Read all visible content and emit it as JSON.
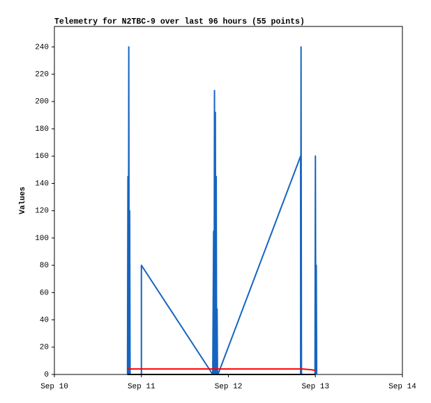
{
  "chart_data": {
    "type": "line",
    "title": "Telemetry for N2TBC-9 over last 96 hours (55 points)",
    "y_label": "Values",
    "xlim": [
      10,
      14
    ],
    "xticks": [
      {
        "value": 10,
        "label": "Sep 10"
      },
      {
        "value": 11,
        "label": "Sep 11"
      },
      {
        "value": 12,
        "label": "Sep 12"
      },
      {
        "value": 13,
        "label": "Sep 13"
      },
      {
        "value": 14,
        "label": "Sep 14"
      }
    ],
    "ylim": [
      0,
      255
    ],
    "yticks": [
      0,
      20,
      40,
      60,
      80,
      100,
      120,
      140,
      160,
      180,
      200,
      220,
      240
    ],
    "series": [
      {
        "color": "#1565c0",
        "x": [
          10.84,
          10.845,
          10.85,
          10.855,
          10.86,
          10.865,
          10.87,
          11.0,
          11.0,
          11.82,
          11.83,
          11.835,
          11.84,
          11.845,
          11.85,
          11.855,
          11.86,
          11.865,
          11.87,
          11.875,
          11.88,
          12.83,
          12.83,
          12.835,
          12.84,
          12.995,
          13.0,
          13.005,
          13.01,
          13.015
        ],
        "values": [
          0,
          145,
          0,
          240,
          0,
          120,
          0,
          0,
          80,
          0,
          105,
          0,
          208,
          0,
          192,
          0,
          145,
          0,
          48,
          0,
          0,
          160,
          0,
          240,
          0,
          0,
          160,
          0,
          80,
          0
        ]
      },
      {
        "color": "#ff0000",
        "x": [
          10.84,
          11.5,
          12.85,
          12.95,
          13.0
        ],
        "values": [
          4,
          4,
          4,
          3.5,
          3
        ]
      },
      {
        "color": "#000000",
        "x": [
          10.84,
          13.0
        ],
        "values": [
          0,
          0
        ]
      }
    ]
  }
}
